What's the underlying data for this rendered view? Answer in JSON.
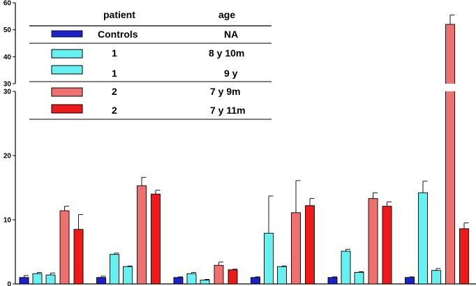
{
  "chart_data": {
    "type": "bar",
    "y_axis": {
      "broken": true,
      "lower_range": [
        0,
        30
      ],
      "upper_range": [
        30,
        60
      ],
      "lower_ticks": [
        "0",
        "10",
        "20",
        "30"
      ],
      "upper_ticks": [
        "30",
        "40",
        "50",
        "60"
      ]
    },
    "group_count": 6,
    "series": [
      {
        "key": "controls",
        "patient": "Controls",
        "age": "NA",
        "color": "#1c22c9",
        "values": [
          1.0,
          1.0,
          1.0,
          1.0,
          1.0,
          1.0
        ],
        "errors": [
          0.3,
          0.2,
          0.1,
          0.1,
          0.1,
          0.1
        ]
      },
      {
        "key": "p1_a",
        "patient": "1",
        "age": "8 y 10m",
        "color": "#66f0f0",
        "values": [
          1.6,
          4.6,
          1.6,
          7.9,
          5.1,
          14.2
        ],
        "errors": [
          0.2,
          0.2,
          0.2,
          5.8,
          0.3,
          1.8
        ]
      },
      {
        "key": "p1_b",
        "patient": "1",
        "age": "9 y",
        "color": "#66f0f0",
        "values": [
          1.4,
          2.7,
          0.6,
          2.7,
          1.8,
          2.1
        ],
        "errors": [
          0.3,
          0.1,
          0.1,
          0.1,
          0.1,
          0.3
        ]
      },
      {
        "key": "p2_a",
        "patient": "2",
        "age": "7 y 9m",
        "color": "#f07070",
        "values": [
          11.4,
          15.3,
          2.9,
          11.1,
          13.3,
          52.0
        ],
        "errors": [
          0.7,
          1.3,
          0.5,
          5.0,
          0.9,
          3.5
        ]
      },
      {
        "key": "p2_b",
        "patient": "2",
        "age": "7 y 11m",
        "color": "#ee1a1a",
        "values": [
          8.5,
          14.0,
          2.2,
          12.2,
          12.1,
          8.6
        ],
        "errors": [
          2.3,
          0.6,
          0.1,
          1.1,
          0.7,
          0.9
        ]
      }
    ],
    "legend": {
      "header_patient": "patient",
      "header_age": "age",
      "rows": [
        {
          "patient": "Controls",
          "age": "NA",
          "color": "#1c22c9"
        },
        {
          "patient": "1",
          "age": "8 y 10m",
          "color": "#66f0f0"
        },
        {
          "patient": "1",
          "age": "9 y",
          "color": "#66f0f0"
        },
        {
          "patient": "2",
          "age": "7 y 9m",
          "color": "#f07070"
        },
        {
          "patient": "2",
          "age": "7 y 11m",
          "color": "#ee1a1a"
        }
      ]
    }
  }
}
